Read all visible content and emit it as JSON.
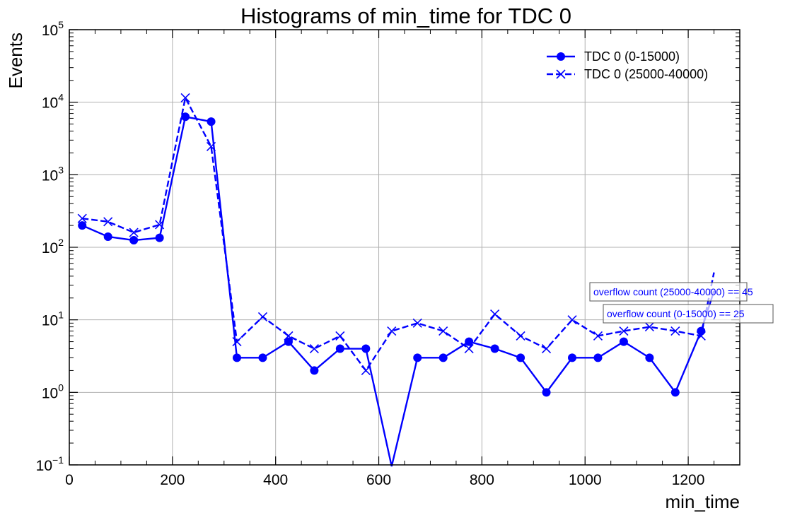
{
  "chart_data": {
    "type": "line",
    "title": "Histograms of min_time for TDC 0",
    "xlabel": "min_time",
    "ylabel": "Events",
    "xlim": [
      0,
      1300
    ],
    "ylim": [
      0.1,
      100000
    ],
    "yscale": "log",
    "grid": true,
    "legend_position": "top-right",
    "x_ticks": [
      "0",
      "200",
      "400",
      "600",
      "800",
      "1000",
      "1200"
    ],
    "y_ticks": [
      {
        "base": "10",
        "exp": "−1"
      },
      {
        "base": "10",
        "exp": "0"
      },
      {
        "base": "10",
        "exp": "1"
      },
      {
        "base": "10",
        "exp": "2"
      },
      {
        "base": "10",
        "exp": "3"
      },
      {
        "base": "10",
        "exp": "4"
      },
      {
        "base": "10",
        "exp": "5"
      }
    ],
    "x": [
      25,
      75,
      125,
      175,
      225,
      275,
      325,
      375,
      425,
      475,
      525,
      575,
      625,
      675,
      725,
      775,
      825,
      875,
      925,
      975,
      1025,
      1075,
      1125,
      1175,
      1225,
      1250
    ],
    "series": [
      {
        "name": "TDC 0 (0-15000)",
        "color": "#0000ff",
        "line_style": "solid",
        "marker": "circle",
        "values": [
          200,
          140,
          125,
          135,
          6300,
          5400,
          3,
          3,
          5,
          2,
          4,
          4,
          0,
          3,
          3,
          5,
          4,
          3,
          1,
          3,
          3,
          5,
          3,
          1,
          7,
          25
        ]
      },
      {
        "name": "TDC 0 (25000-40000)",
        "color": "#0000ff",
        "line_style": "dashed",
        "marker": "x",
        "values": [
          250,
          225,
          160,
          205,
          11500,
          2450,
          5,
          11,
          6,
          4,
          6,
          2,
          7,
          9,
          7,
          4,
          12,
          6,
          4,
          10,
          6,
          7,
          8,
          7,
          6,
          45
        ]
      }
    ],
    "annotations": [
      "overflow count (25000-40000) == 45",
      "overflow count (0-15000) == 25"
    ]
  }
}
